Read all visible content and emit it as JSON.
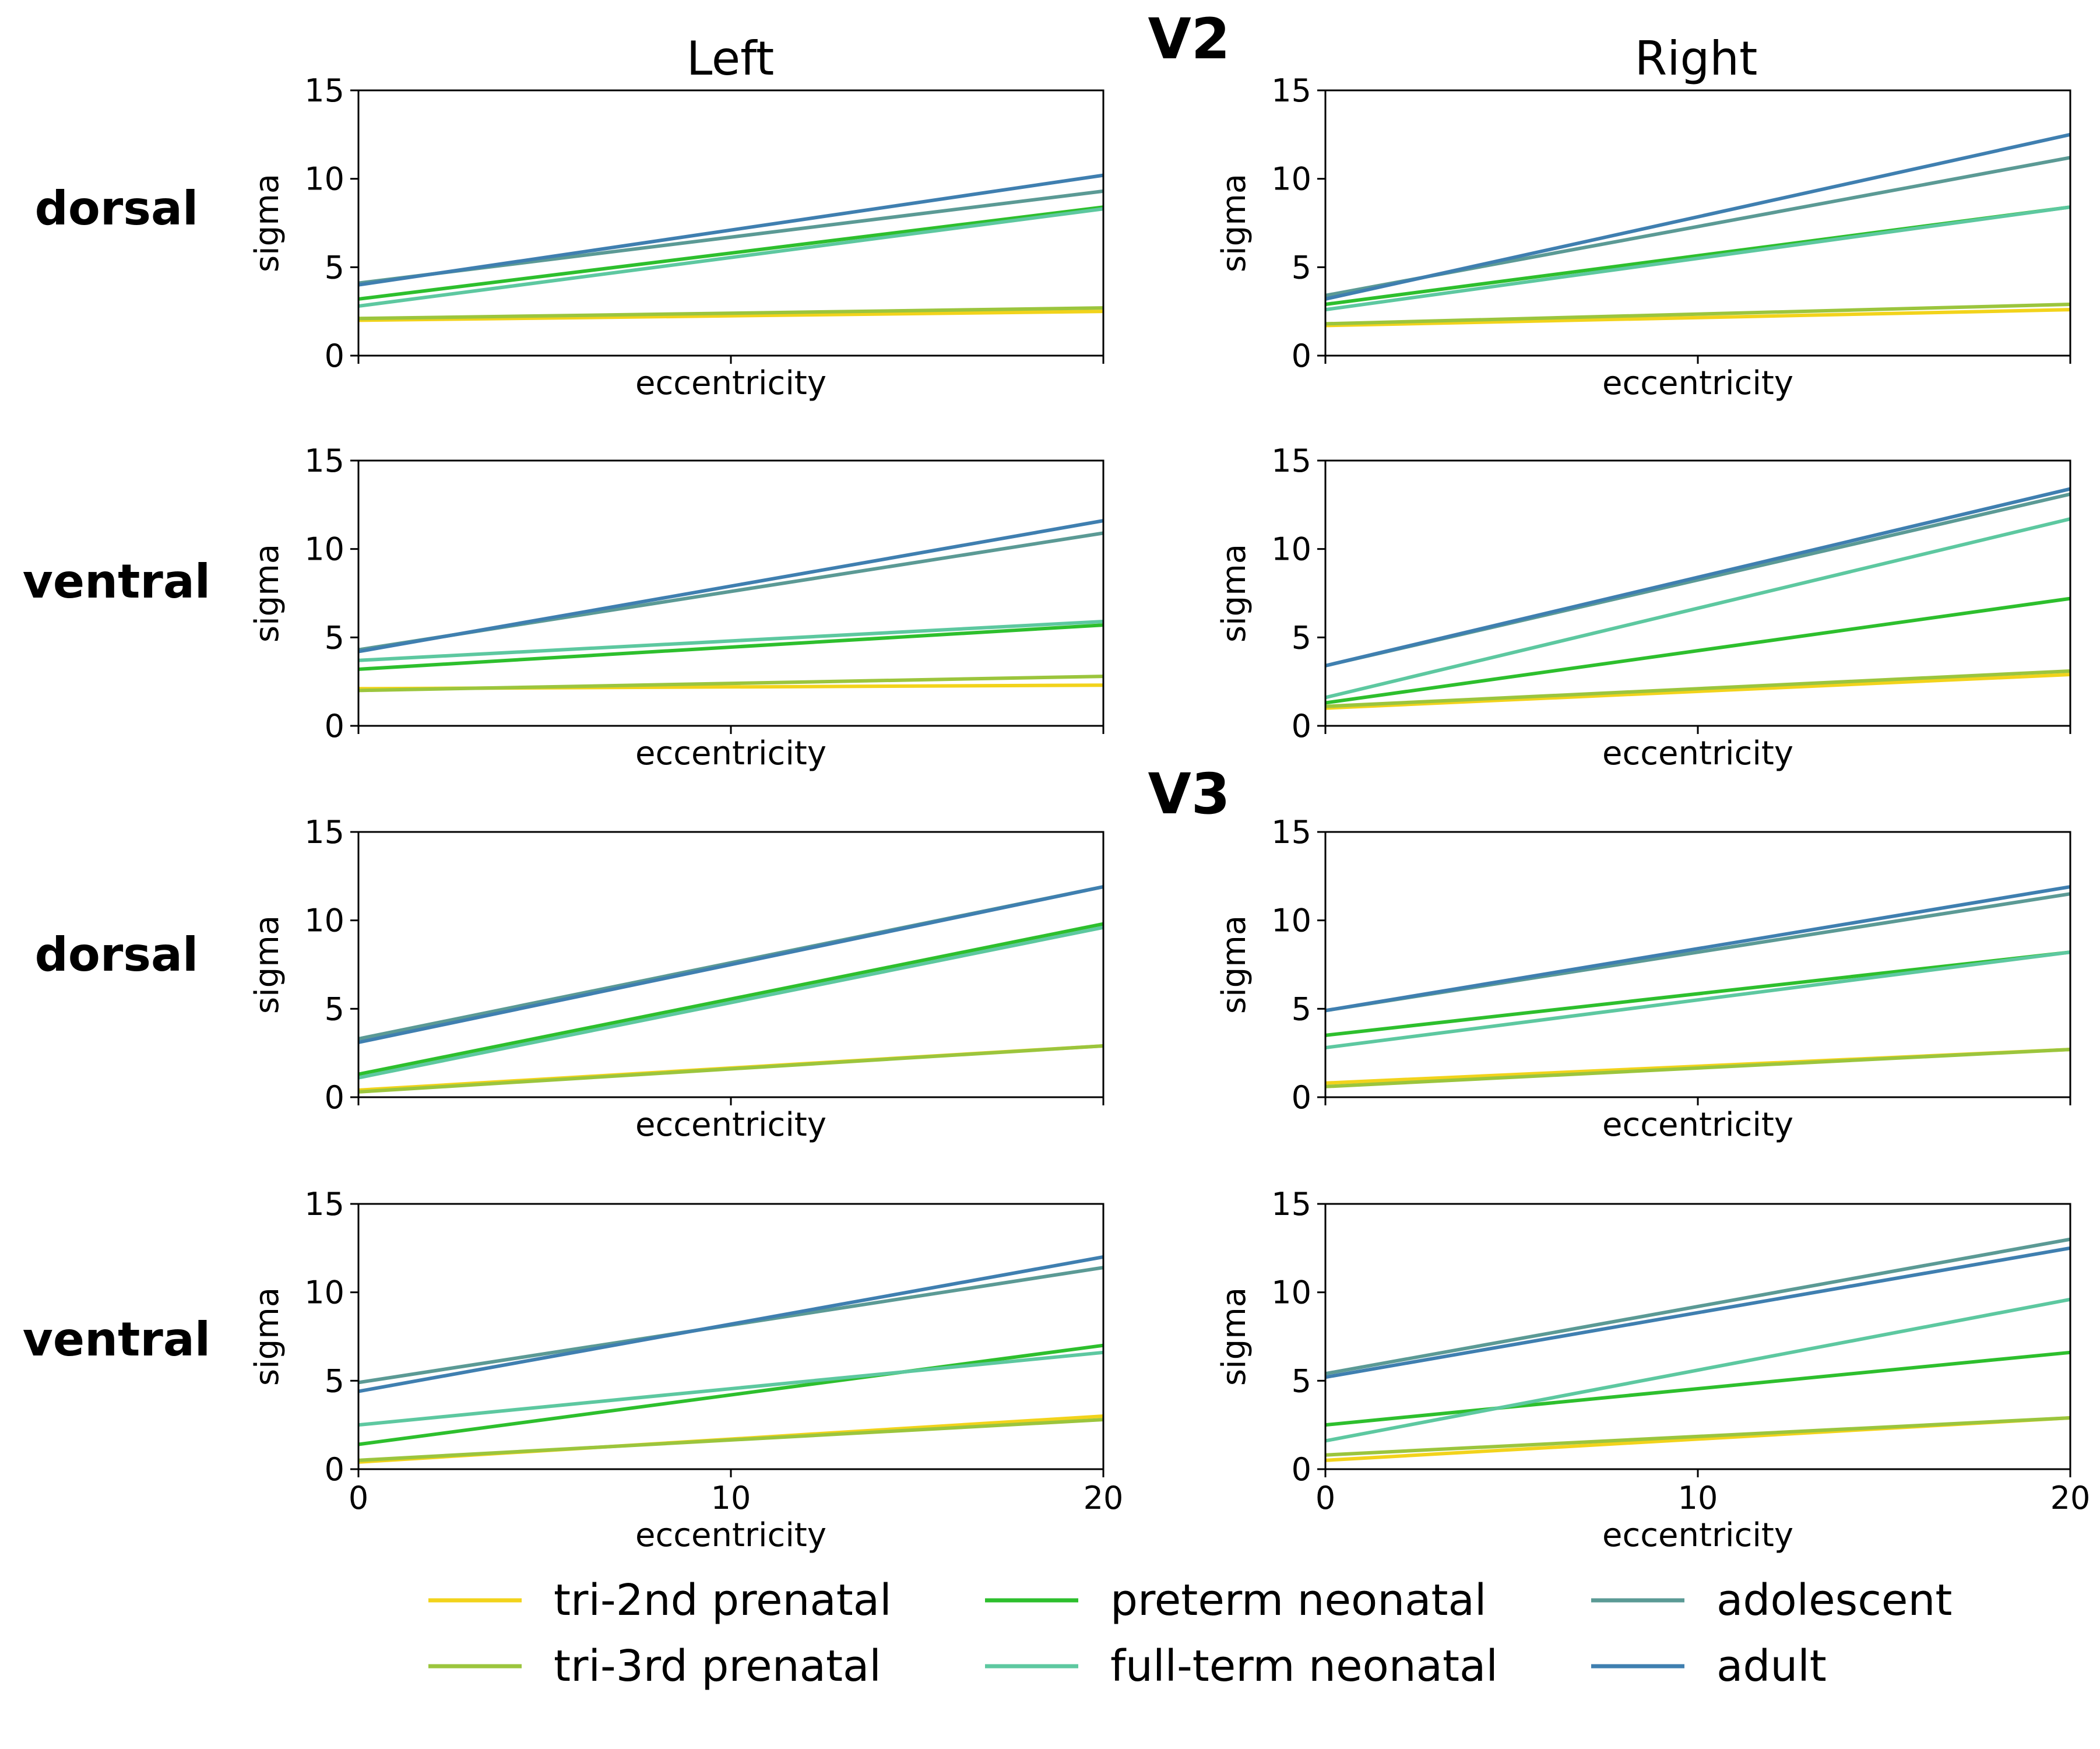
{
  "figure": {
    "col_left_title": "Left",
    "col_right_title": "Right",
    "v2_label": "V2",
    "v3_label": "V3",
    "row_labels": [
      "dorsal",
      "ventral",
      "dorsal",
      "ventral"
    ]
  },
  "legend": [
    {
      "name": "tri-2nd prenatal",
      "color": "#F2D31B"
    },
    {
      "name": "tri-3rd prenatal",
      "color": "#9BC53D"
    },
    {
      "name": "preterm neonatal",
      "color": "#2DBF2D"
    },
    {
      "name": "full-term neonatal",
      "color": "#5DC8A0"
    },
    {
      "name": "adolescent",
      "color": "#5B9A95"
    },
    {
      "name": "adult",
      "color": "#3F7FB0"
    }
  ],
  "chart_data": [
    {
      "type": "line",
      "area": "V2",
      "stream": "dorsal",
      "hemisphere": "Left",
      "xlabel": "eccentricity",
      "ylabel": "sigma",
      "xlim": [
        0,
        20
      ],
      "ylim": [
        0,
        15
      ],
      "yticks": [
        0,
        5,
        10,
        15
      ],
      "xticks": [
        0,
        10,
        20
      ],
      "x": [
        0,
        20
      ],
      "series": [
        {
          "name": "tri-2nd prenatal",
          "values": [
            2.0,
            2.5
          ]
        },
        {
          "name": "tri-3rd prenatal",
          "values": [
            2.1,
            2.7
          ]
        },
        {
          "name": "preterm neonatal",
          "values": [
            3.2,
            8.4
          ]
        },
        {
          "name": "full-term neonatal",
          "values": [
            2.8,
            8.3
          ]
        },
        {
          "name": "adolescent",
          "values": [
            4.1,
            9.3
          ]
        },
        {
          "name": "adult",
          "values": [
            4.0,
            10.2
          ]
        }
      ]
    },
    {
      "type": "line",
      "area": "V2",
      "stream": "dorsal",
      "hemisphere": "Right",
      "xlabel": "eccentricity",
      "ylabel": "sigma",
      "xlim": [
        0,
        20
      ],
      "ylim": [
        0,
        15
      ],
      "yticks": [
        0,
        5,
        10,
        15
      ],
      "xticks": [
        0,
        10,
        20
      ],
      "x": [
        0,
        20
      ],
      "series": [
        {
          "name": "tri-2nd prenatal",
          "values": [
            1.7,
            2.6
          ]
        },
        {
          "name": "tri-3rd prenatal",
          "values": [
            1.8,
            2.9
          ]
        },
        {
          "name": "preterm neonatal",
          "values": [
            2.9,
            8.4
          ]
        },
        {
          "name": "full-term neonatal",
          "values": [
            2.6,
            8.4
          ]
        },
        {
          "name": "adolescent",
          "values": [
            3.4,
            11.2
          ]
        },
        {
          "name": "adult",
          "values": [
            3.2,
            12.5
          ]
        }
      ]
    },
    {
      "type": "line",
      "area": "V2",
      "stream": "ventral",
      "hemisphere": "Left",
      "xlabel": "eccentricity",
      "ylabel": "sigma",
      "xlim": [
        0,
        20
      ],
      "ylim": [
        0,
        15
      ],
      "yticks": [
        0,
        5,
        10,
        15
      ],
      "xticks": [
        0,
        10,
        20
      ],
      "x": [
        0,
        20
      ],
      "series": [
        {
          "name": "tri-2nd prenatal",
          "values": [
            2.1,
            2.3
          ]
        },
        {
          "name": "tri-3rd prenatal",
          "values": [
            2.0,
            2.8
          ]
        },
        {
          "name": "preterm neonatal",
          "values": [
            3.2,
            5.7
          ]
        },
        {
          "name": "full-term neonatal",
          "values": [
            3.7,
            5.9
          ]
        },
        {
          "name": "adolescent",
          "values": [
            4.3,
            10.9
          ]
        },
        {
          "name": "adult",
          "values": [
            4.2,
            11.6
          ]
        }
      ]
    },
    {
      "type": "line",
      "area": "V2",
      "stream": "ventral",
      "hemisphere": "Right",
      "xlabel": "eccentricity",
      "ylabel": "sigma",
      "xlim": [
        0,
        20
      ],
      "ylim": [
        0,
        15
      ],
      "yticks": [
        0,
        5,
        10,
        15
      ],
      "xticks": [
        0,
        10,
        20
      ],
      "x": [
        0,
        20
      ],
      "series": [
        {
          "name": "tri-2nd prenatal",
          "values": [
            1.0,
            2.9
          ]
        },
        {
          "name": "tri-3rd prenatal",
          "values": [
            1.1,
            3.1
          ]
        },
        {
          "name": "preterm neonatal",
          "values": [
            1.3,
            7.2
          ]
        },
        {
          "name": "full-term neonatal",
          "values": [
            1.6,
            11.7
          ]
        },
        {
          "name": "adolescent",
          "values": [
            3.4,
            13.1
          ]
        },
        {
          "name": "adult",
          "values": [
            3.4,
            13.4
          ]
        }
      ]
    },
    {
      "type": "line",
      "area": "V3",
      "stream": "dorsal",
      "hemisphere": "Left",
      "xlabel": "eccentricity",
      "ylabel": "sigma",
      "xlim": [
        0,
        20
      ],
      "ylim": [
        0,
        15
      ],
      "yticks": [
        0,
        5,
        10,
        15
      ],
      "xticks": [
        0,
        10,
        20
      ],
      "x": [
        0,
        20
      ],
      "series": [
        {
          "name": "tri-2nd prenatal",
          "values": [
            0.4,
            2.9
          ]
        },
        {
          "name": "tri-3rd prenatal",
          "values": [
            0.3,
            2.9
          ]
        },
        {
          "name": "preterm neonatal",
          "values": [
            1.3,
            9.8
          ]
        },
        {
          "name": "full-term neonatal",
          "values": [
            1.1,
            9.6
          ]
        },
        {
          "name": "adolescent",
          "values": [
            3.3,
            11.9
          ]
        },
        {
          "name": "adult",
          "values": [
            3.1,
            11.9
          ]
        }
      ]
    },
    {
      "type": "line",
      "area": "V3",
      "stream": "dorsal",
      "hemisphere": "Right",
      "xlabel": "eccentricity",
      "ylabel": "sigma",
      "xlim": [
        0,
        20
      ],
      "ylim": [
        0,
        15
      ],
      "yticks": [
        0,
        5,
        10,
        15
      ],
      "xticks": [
        0,
        10,
        20
      ],
      "x": [
        0,
        20
      ],
      "series": [
        {
          "name": "tri-2nd prenatal",
          "values": [
            0.8,
            2.7
          ]
        },
        {
          "name": "tri-3rd prenatal",
          "values": [
            0.6,
            2.7
          ]
        },
        {
          "name": "preterm neonatal",
          "values": [
            3.5,
            8.2
          ]
        },
        {
          "name": "full-term neonatal",
          "values": [
            2.8,
            8.2
          ]
        },
        {
          "name": "adolescent",
          "values": [
            4.9,
            11.5
          ]
        },
        {
          "name": "adult",
          "values": [
            4.9,
            11.9
          ]
        }
      ]
    },
    {
      "type": "line",
      "area": "V3",
      "stream": "ventral",
      "hemisphere": "Left",
      "xlabel": "eccentricity",
      "ylabel": "sigma",
      "xlim": [
        0,
        20
      ],
      "ylim": [
        0,
        15
      ],
      "yticks": [
        0,
        5,
        10,
        15
      ],
      "xticks": [
        0,
        10,
        20
      ],
      "x": [
        0,
        20
      ],
      "series": [
        {
          "name": "tri-2nd prenatal",
          "values": [
            0.4,
            3.0
          ]
        },
        {
          "name": "tri-3rd prenatal",
          "values": [
            0.5,
            2.8
          ]
        },
        {
          "name": "preterm neonatal",
          "values": [
            1.4,
            7.0
          ]
        },
        {
          "name": "full-term neonatal",
          "values": [
            2.5,
            6.6
          ]
        },
        {
          "name": "adolescent",
          "values": [
            4.9,
            11.4
          ]
        },
        {
          "name": "adult",
          "values": [
            4.4,
            12.0
          ]
        }
      ]
    },
    {
      "type": "line",
      "area": "V3",
      "stream": "ventral",
      "hemisphere": "Right",
      "xlabel": "eccentricity",
      "ylabel": "sigma",
      "xlim": [
        0,
        20
      ],
      "ylim": [
        0,
        15
      ],
      "yticks": [
        0,
        5,
        10,
        15
      ],
      "xticks": [
        0,
        10,
        20
      ],
      "x": [
        0,
        20
      ],
      "series": [
        {
          "name": "tri-2nd prenatal",
          "values": [
            0.5,
            2.9
          ]
        },
        {
          "name": "tri-3rd prenatal",
          "values": [
            0.8,
            2.9
          ]
        },
        {
          "name": "preterm neonatal",
          "values": [
            2.5,
            6.6
          ]
        },
        {
          "name": "full-term neonatal",
          "values": [
            1.6,
            9.6
          ]
        },
        {
          "name": "adolescent",
          "values": [
            5.4,
            13.0
          ]
        },
        {
          "name": "adult",
          "values": [
            5.2,
            12.5
          ]
        }
      ]
    }
  ]
}
